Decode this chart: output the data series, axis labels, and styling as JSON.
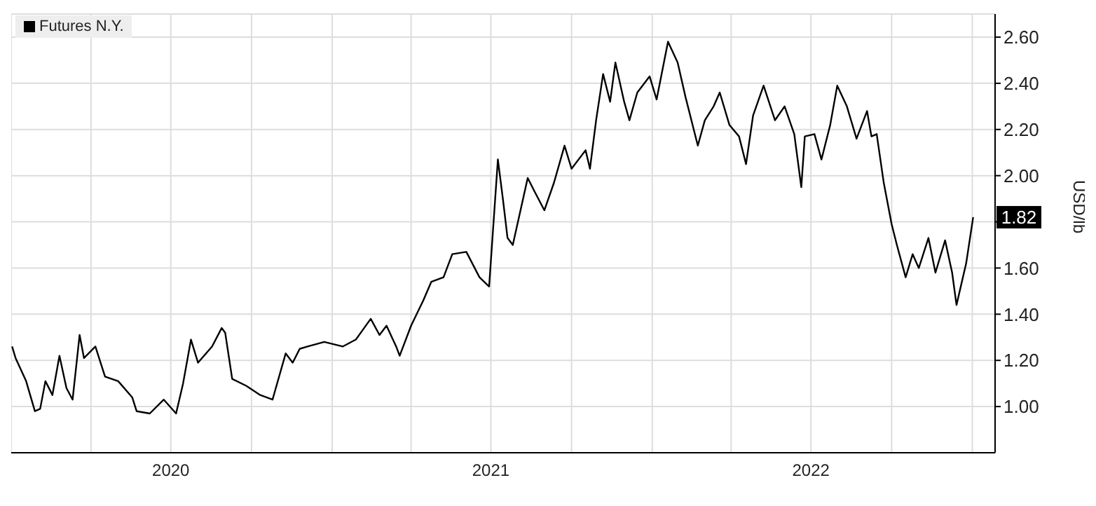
{
  "chart_data": {
    "type": "line",
    "ylabel": "USD/lb",
    "legend": "top left",
    "grid": true,
    "marker": "none",
    "line_style": "solid",
    "xlim": [
      "2020-01-01",
      "2023-01-27"
    ],
    "ylim": [
      0.8,
      2.7
    ],
    "xticks": [
      {
        "value": "2020-04-01",
        "label": null
      },
      {
        "value": "2020-07-01",
        "label": "2020"
      },
      {
        "value": "2020-10-01",
        "label": null
      },
      {
        "value": "2021-01-01",
        "label": null
      },
      {
        "value": "2021-04-01",
        "label": null
      },
      {
        "value": "2021-07-01",
        "label": "2021"
      },
      {
        "value": "2021-10-01",
        "label": null
      },
      {
        "value": "2022-01-01",
        "label": null
      },
      {
        "value": "2022-04-01",
        "label": null
      },
      {
        "value": "2022-07-01",
        "label": "2022"
      },
      {
        "value": "2022-10-01",
        "label": null
      },
      {
        "value": "2023-01-01",
        "label": null
      }
    ],
    "yticks": [
      {
        "value": 1,
        "label": "1.00"
      },
      {
        "value": 1.2,
        "label": "1.20"
      },
      {
        "value": 1.4,
        "label": "1.40"
      },
      {
        "value": 1.6,
        "label": "1.60"
      },
      {
        "value": 1.8,
        "label": null
      },
      {
        "value": 2,
        "label": "2.00"
      },
      {
        "value": 2.2,
        "label": "2.20"
      },
      {
        "value": 2.4,
        "label": "2.40"
      },
      {
        "value": 2.6,
        "label": "2.60"
      }
    ],
    "annotations": [
      {
        "text": "1.82",
        "x": "2023-01-02",
        "y": 1.82
      }
    ],
    "x": [
      "2020-01-02",
      "2020-01-06",
      "2020-01-18",
      "2020-01-28",
      "2020-02-03",
      "2020-02-09",
      "2020-02-17",
      "2020-02-25",
      "2020-03-04",
      "2020-03-11",
      "2020-03-19",
      "2020-03-24",
      "2020-04-06",
      "2020-04-17",
      "2020-05-02",
      "2020-05-18",
      "2020-05-23",
      "2020-06-07",
      "2020-06-23",
      "2020-07-07",
      "2020-07-15",
      "2020-07-24",
      "2020-08-01",
      "2020-08-17",
      "2020-08-28",
      "2020-09-01",
      "2020-09-09",
      "2020-09-25",
      "2020-10-11",
      "2020-10-25",
      "2020-11-09",
      "2020-11-17",
      "2020-11-25",
      "2020-12-04",
      "2020-12-23",
      "2021-01-13",
      "2021-01-28",
      "2021-02-14",
      "2021-02-24",
      "2021-03-04",
      "2021-03-15",
      "2021-03-19",
      "2021-04-01",
      "2021-04-15",
      "2021-04-24",
      "2021-05-08",
      "2021-05-18",
      "2021-06-03",
      "2021-06-18",
      "2021-06-29",
      "2021-07-09",
      "2021-07-15",
      "2021-07-20",
      "2021-07-26",
      "2021-08-12",
      "2021-08-20",
      "2021-08-31",
      "2021-09-11",
      "2021-09-23",
      "2021-10-01",
      "2021-10-17",
      "2021-10-22",
      "2021-10-29",
      "2021-11-06",
      "2021-11-14",
      "2021-11-20",
      "2021-11-30",
      "2021-12-06",
      "2021-12-15",
      "2021-12-29",
      "2022-01-06",
      "2022-01-19",
      "2022-01-30",
      "2022-02-08",
      "2022-02-22",
      "2022-03-02",
      "2022-03-12",
      "2022-03-19",
      "2022-03-30",
      "2022-04-10",
      "2022-04-18",
      "2022-04-26",
      "2022-05-08",
      "2022-05-21",
      "2022-06-01",
      "2022-06-12",
      "2022-06-20",
      "2022-06-24",
      "2022-07-05",
      "2022-07-13",
      "2022-07-23",
      "2022-07-31",
      "2022-08-11",
      "2022-08-22",
      "2022-09-03",
      "2022-09-08",
      "2022-09-14",
      "2022-09-22",
      "2022-10-01",
      "2022-10-07",
      "2022-10-17",
      "2022-10-25",
      "2022-11-01",
      "2022-11-12",
      "2022-11-20",
      "2022-12-01",
      "2022-12-09",
      "2022-12-14",
      "2022-12-25",
      "2023-01-02"
    ],
    "series": [
      {
        "name": "Futures N.Y.",
        "color": "#000000",
        "values": [
          1.26,
          1.21,
          1.11,
          0.98,
          0.99,
          1.11,
          1.05,
          1.22,
          1.08,
          1.03,
          1.31,
          1.21,
          1.26,
          1.13,
          1.11,
          1.04,
          0.98,
          0.97,
          1.03,
          0.97,
          1.1,
          1.29,
          1.19,
          1.26,
          1.34,
          1.32,
          1.12,
          1.09,
          1.05,
          1.03,
          1.23,
          1.19,
          1.25,
          1.26,
          1.28,
          1.26,
          1.29,
          1.38,
          1.31,
          1.35,
          1.26,
          1.22,
          1.35,
          1.46,
          1.54,
          1.56,
          1.66,
          1.67,
          1.56,
          1.52,
          2.07,
          1.89,
          1.73,
          1.7,
          1.99,
          1.93,
          1.85,
          1.97,
          2.13,
          2.03,
          2.11,
          2.03,
          2.24,
          2.44,
          2.32,
          2.49,
          2.32,
          2.24,
          2.36,
          2.43,
          2.33,
          2.58,
          2.49,
          2.34,
          2.13,
          2.24,
          2.3,
          2.36,
          2.22,
          2.17,
          2.05,
          2.26,
          2.39,
          2.24,
          2.3,
          2.18,
          1.95,
          2.17,
          2.18,
          2.07,
          2.22,
          2.39,
          2.3,
          2.16,
          2.28,
          2.17,
          2.18,
          1.97,
          1.79,
          1.7,
          1.56,
          1.66,
          1.6,
          1.73,
          1.58,
          1.72,
          1.58,
          1.44,
          1.62,
          1.82
        ]
      }
    ]
  }
}
